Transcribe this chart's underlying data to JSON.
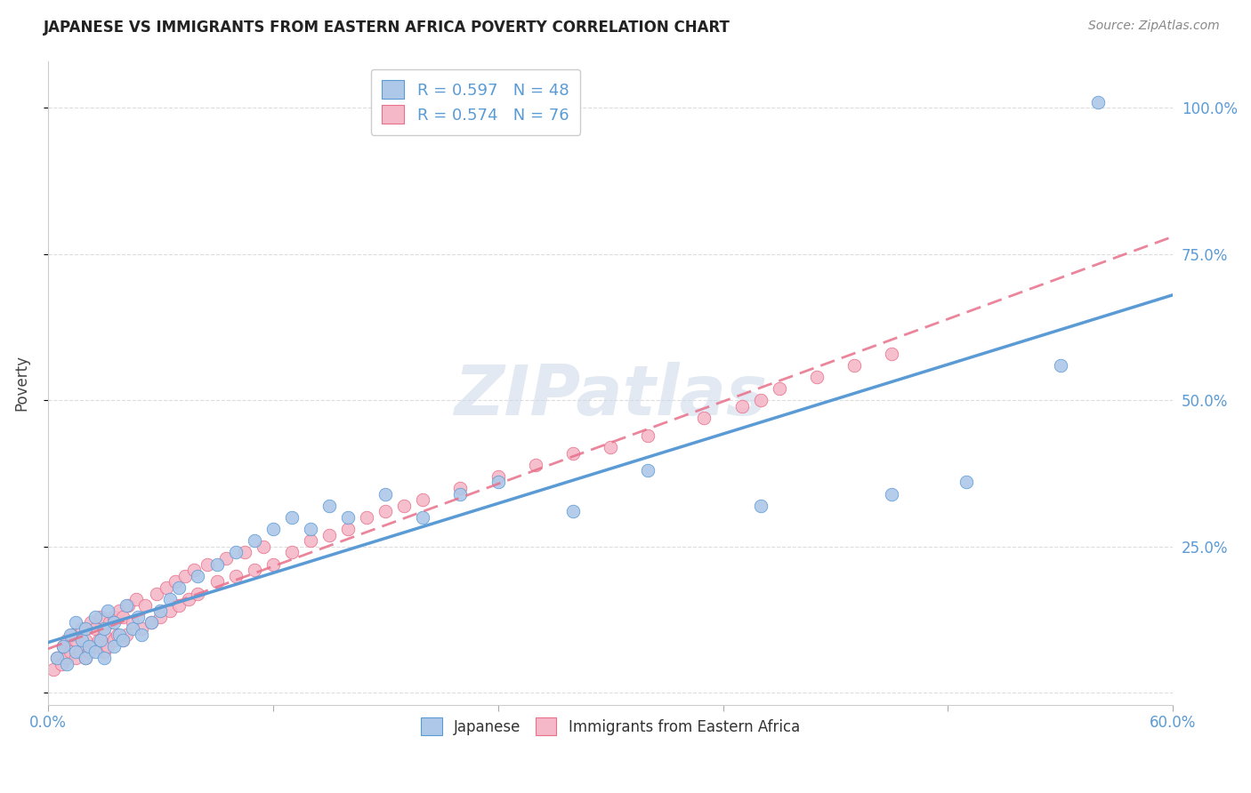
{
  "title": "JAPANESE VS IMMIGRANTS FROM EASTERN AFRICA POVERTY CORRELATION CHART",
  "source": "Source: ZipAtlas.com",
  "ylabel": "Poverty",
  "xlim": [
    0.0,
    0.6
  ],
  "ylim": [
    -0.02,
    1.08
  ],
  "xtick_positions": [
    0.0,
    0.12,
    0.24,
    0.36,
    0.48,
    0.6
  ],
  "xtick_labels": [
    "0.0%",
    "",
    "",
    "",
    "",
    "60.0%"
  ],
  "ytick_positions": [
    0.0,
    0.25,
    0.5,
    0.75,
    1.0
  ],
  "ytick_labels": [
    "",
    "25.0%",
    "50.0%",
    "75.0%",
    "100.0%"
  ],
  "grid_color": "#dddddd",
  "background_color": "#ffffff",
  "japanese_fill_color": "#adc8e8",
  "japanese_edge_color": "#5b9bd5",
  "ea_fill_color": "#f5b8c8",
  "ea_edge_color": "#e8708a",
  "japanese_line_color": "#5b9bd5",
  "ea_line_color": "#e8708a",
  "R_japanese": 0.597,
  "N_japanese": 48,
  "R_eastern_africa": 0.574,
  "N_eastern_africa": 76,
  "jp_x": [
    0.005,
    0.008,
    0.01,
    0.012,
    0.015,
    0.015,
    0.018,
    0.02,
    0.02,
    0.022,
    0.025,
    0.025,
    0.028,
    0.03,
    0.03,
    0.032,
    0.035,
    0.035,
    0.038,
    0.04,
    0.042,
    0.045,
    0.048,
    0.05,
    0.055,
    0.06,
    0.065,
    0.07,
    0.08,
    0.09,
    0.1,
    0.11,
    0.12,
    0.13,
    0.14,
    0.15,
    0.16,
    0.18,
    0.2,
    0.22,
    0.24,
    0.28,
    0.32,
    0.38,
    0.45,
    0.49,
    0.54,
    0.56
  ],
  "jp_y": [
    0.06,
    0.08,
    0.05,
    0.1,
    0.07,
    0.12,
    0.09,
    0.06,
    0.11,
    0.08,
    0.07,
    0.13,
    0.09,
    0.06,
    0.11,
    0.14,
    0.08,
    0.12,
    0.1,
    0.09,
    0.15,
    0.11,
    0.13,
    0.1,
    0.12,
    0.14,
    0.16,
    0.18,
    0.2,
    0.22,
    0.24,
    0.26,
    0.28,
    0.3,
    0.28,
    0.32,
    0.3,
    0.34,
    0.3,
    0.34,
    0.36,
    0.31,
    0.38,
    0.32,
    0.34,
    0.36,
    0.56,
    1.01
  ],
  "ea_x": [
    0.003,
    0.005,
    0.007,
    0.008,
    0.01,
    0.01,
    0.012,
    0.013,
    0.015,
    0.015,
    0.017,
    0.018,
    0.02,
    0.02,
    0.022,
    0.023,
    0.025,
    0.025,
    0.027,
    0.028,
    0.03,
    0.03,
    0.032,
    0.033,
    0.035,
    0.035,
    0.037,
    0.038,
    0.04,
    0.04,
    0.042,
    0.043,
    0.045,
    0.047,
    0.05,
    0.052,
    0.055,
    0.058,
    0.06,
    0.063,
    0.065,
    0.068,
    0.07,
    0.073,
    0.075,
    0.078,
    0.08,
    0.085,
    0.09,
    0.095,
    0.1,
    0.105,
    0.11,
    0.115,
    0.12,
    0.13,
    0.14,
    0.15,
    0.16,
    0.17,
    0.18,
    0.19,
    0.2,
    0.22,
    0.24,
    0.26,
    0.28,
    0.3,
    0.32,
    0.35,
    0.37,
    0.38,
    0.39,
    0.41,
    0.43,
    0.45
  ],
  "ea_y": [
    0.04,
    0.06,
    0.05,
    0.08,
    0.06,
    0.09,
    0.07,
    0.1,
    0.06,
    0.09,
    0.07,
    0.11,
    0.06,
    0.09,
    0.07,
    0.12,
    0.08,
    0.11,
    0.09,
    0.13,
    0.07,
    0.1,
    0.08,
    0.12,
    0.09,
    0.13,
    0.1,
    0.14,
    0.09,
    0.13,
    0.1,
    0.15,
    0.12,
    0.16,
    0.11,
    0.15,
    0.12,
    0.17,
    0.13,
    0.18,
    0.14,
    0.19,
    0.15,
    0.2,
    0.16,
    0.21,
    0.17,
    0.22,
    0.19,
    0.23,
    0.2,
    0.24,
    0.21,
    0.25,
    0.22,
    0.24,
    0.26,
    0.27,
    0.28,
    0.3,
    0.31,
    0.32,
    0.33,
    0.35,
    0.37,
    0.39,
    0.41,
    0.42,
    0.44,
    0.47,
    0.49,
    0.5,
    0.52,
    0.54,
    0.56,
    0.58
  ]
}
